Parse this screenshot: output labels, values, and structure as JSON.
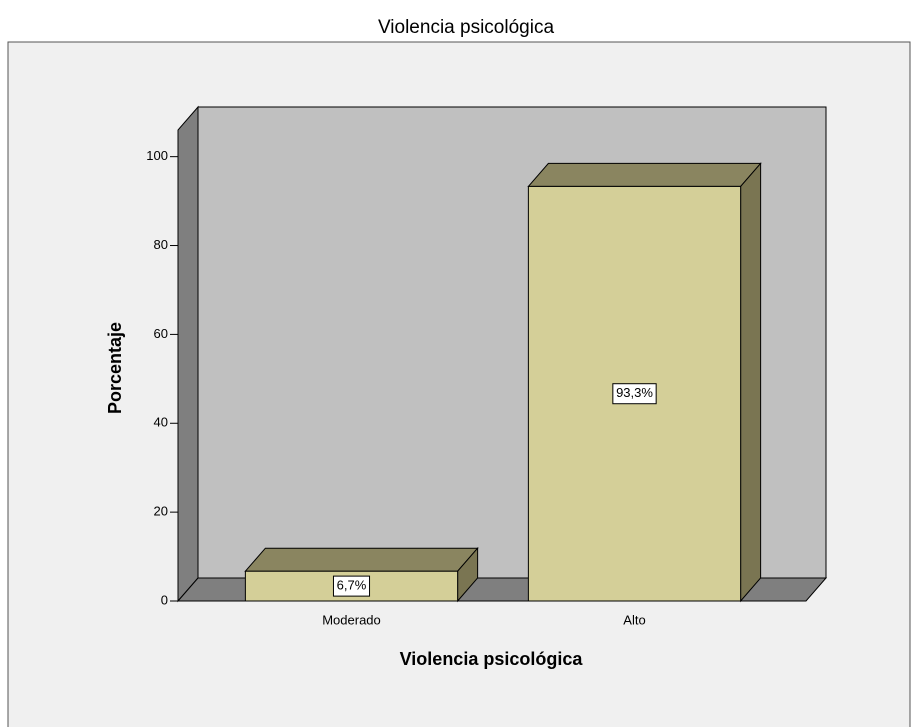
{
  "chart_data": {
    "type": "bar3d",
    "title": "Violencia psicológica",
    "x_label": "Violencia psicológica",
    "y_label": "Porcentaje",
    "categories": [
      "Moderado",
      "Alto"
    ],
    "values": [
      6.7,
      93.3
    ],
    "value_labels": [
      "6,7%",
      "93,3%"
    ],
    "color": "#d4cf98",
    "ylim": [
      0,
      106
    ],
    "yticks": [
      0,
      20,
      40,
      60,
      80,
      100
    ],
    "grid": false
  }
}
